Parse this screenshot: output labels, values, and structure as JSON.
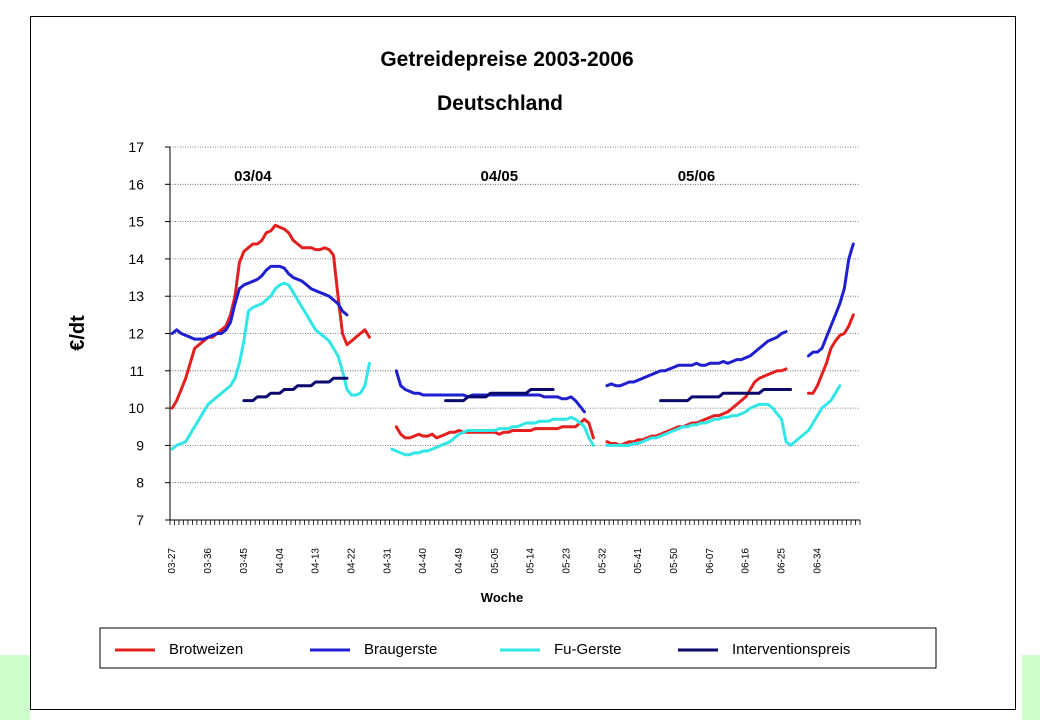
{
  "chart_data": {
    "type": "line",
    "title": "Getreidepreise 2003-2006",
    "subtitle": "Deutschland",
    "xlabel": "Woche",
    "ylabel": "€/dt",
    "ylim": [
      7,
      17
    ],
    "yticks": [
      7,
      8,
      9,
      10,
      11,
      12,
      13,
      14,
      15,
      16,
      17
    ],
    "grid": "horizontal dotted",
    "x_count": 154,
    "x_tick_labels": [
      "03-27",
      "03-36",
      "03-45",
      "04-04",
      "04-13",
      "04-22",
      "04-31",
      "04-40",
      "04-49",
      "05-05",
      "05-14",
      "05-23",
      "05-32",
      "05-41",
      "05-50",
      "06-07",
      "06-16",
      "06-25",
      "06-34"
    ],
    "season_labels": [
      {
        "text": "03/04",
        "at": 18
      },
      {
        "text": "04/05",
        "at": 73
      },
      {
        "text": "05/06",
        "at": 117
      }
    ],
    "legend_position": "bottom",
    "series": [
      {
        "name": "Brotweizen",
        "color": "#e31f1f",
        "segments": [
          {
            "start": 0,
            "values": [
              10.0,
              10.2,
              10.5,
              10.8,
              11.2,
              11.6,
              11.7,
              11.8,
              11.9,
              11.9,
              12.0,
              12.1,
              12.2,
              12.5,
              13.0,
              13.9,
              14.2,
              14.3,
              14.4,
              14.4,
              14.5,
              14.7,
              14.75,
              14.9,
              14.85,
              14.8,
              14.7,
              14.5,
              14.4,
              14.3,
              14.3,
              14.3,
              14.25,
              14.25,
              14.3,
              14.25,
              14.1,
              13.0,
              12.0,
              11.7,
              11.8,
              11.9,
              12.0,
              12.1,
              11.9
            ]
          },
          {
            "start": 50,
            "values": [
              9.5,
              9.3,
              9.2,
              9.2,
              9.25,
              9.3,
              9.25,
              9.25,
              9.3,
              9.2,
              9.25,
              9.3,
              9.35,
              9.35,
              9.4,
              9.35,
              9.35,
              9.35,
              9.35,
              9.35,
              9.35,
              9.35,
              9.35,
              9.3,
              9.35,
              9.35,
              9.4,
              9.4,
              9.4,
              9.4,
              9.4,
              9.45,
              9.45,
              9.45,
              9.45,
              9.45,
              9.45,
              9.5,
              9.5,
              9.5,
              9.5,
              9.6,
              9.7,
              9.6,
              9.2
            ]
          },
          {
            "start": 97,
            "values": [
              9.1,
              9.05,
              9.05,
              9.0,
              9.05,
              9.1,
              9.1,
              9.15,
              9.15,
              9.2,
              9.25,
              9.25,
              9.3,
              9.35,
              9.4,
              9.45,
              9.5,
              9.5,
              9.55,
              9.6,
              9.6,
              9.65,
              9.7,
              9.75,
              9.8,
              9.8,
              9.85,
              9.9,
              10.0,
              10.1,
              10.2,
              10.3,
              10.5,
              10.7,
              10.8,
              10.85,
              10.9,
              10.95,
              11.0,
              11.0,
              11.05
            ]
          },
          {
            "start": 142,
            "values": [
              10.4,
              10.4,
              10.6,
              10.9,
              11.2,
              11.6,
              11.8,
              11.95,
              12.0,
              12.2,
              12.5
            ]
          }
        ]
      },
      {
        "name": "Braugerste",
        "color": "#1f1fd0",
        "segments": [
          {
            "start": 0,
            "values": [
              12.0,
              12.1,
              12.0,
              11.95,
              11.9,
              11.85,
              11.85,
              11.85,
              11.9,
              11.95,
              12.0,
              12.0,
              12.1,
              12.3,
              12.8,
              13.2,
              13.3,
              13.35,
              13.4,
              13.45,
              13.55,
              13.7,
              13.8,
              13.8,
              13.8,
              13.75,
              13.6,
              13.5,
              13.45,
              13.4,
              13.3,
              13.2,
              13.15,
              13.1,
              13.05,
              13.0,
              12.9,
              12.8,
              12.6,
              12.5
            ]
          },
          {
            "start": 50,
            "values": [
              11.0,
              10.6,
              10.5,
              10.45,
              10.4,
              10.4,
              10.35,
              10.35,
              10.35,
              10.35,
              10.35,
              10.35,
              10.35,
              10.35,
              10.35,
              10.35,
              10.3,
              10.35,
              10.35,
              10.35,
              10.35,
              10.35,
              10.35,
              10.35,
              10.35,
              10.35,
              10.35,
              10.35,
              10.35,
              10.35,
              10.35,
              10.35,
              10.35,
              10.3,
              10.3,
              10.3,
              10.3,
              10.25,
              10.25,
              10.3,
              10.2,
              10.05,
              9.9
            ]
          },
          {
            "start": 97,
            "values": [
              10.6,
              10.65,
              10.6,
              10.6,
              10.65,
              10.7,
              10.7,
              10.75,
              10.8,
              10.85,
              10.9,
              10.95,
              11.0,
              11.0,
              11.05,
              11.1,
              11.15,
              11.15,
              11.15,
              11.15,
              11.2,
              11.15,
              11.15,
              11.2,
              11.2,
              11.2,
              11.25,
              11.2,
              11.25,
              11.3,
              11.3,
              11.35,
              11.4,
              11.5,
              11.6,
              11.7,
              11.8,
              11.85,
              11.9,
              12.0,
              12.05
            ]
          },
          {
            "start": 142,
            "values": [
              11.4,
              11.5,
              11.5,
              11.6,
              11.9,
              12.2,
              12.5,
              12.8,
              13.2,
              14.0,
              14.4
            ]
          }
        ]
      },
      {
        "name": "Fu-Gerste",
        "color": "#33e6e6",
        "segments": [
          {
            "start": 0,
            "values": [
              8.9,
              9.0,
              9.05,
              9.1,
              9.3,
              9.5,
              9.7,
              9.9,
              10.1,
              10.2,
              10.3,
              10.4,
              10.5,
              10.6,
              10.8,
              11.2,
              11.8,
              12.6,
              12.7,
              12.75,
              12.8,
              12.9,
              13.0,
              13.2,
              13.3,
              13.35,
              13.3,
              13.1,
              12.9,
              12.7,
              12.5,
              12.3,
              12.1,
              12.0,
              11.9,
              11.8,
              11.6,
              11.4,
              11.0,
              10.5,
              10.35,
              10.35,
              10.4,
              10.6,
              11.2
            ]
          },
          {
            "start": 49,
            "values": [
              8.9,
              8.85,
              8.8,
              8.75,
              8.75,
              8.8,
              8.8,
              8.85,
              8.85,
              8.9,
              8.95,
              9.0,
              9.05,
              9.1,
              9.2,
              9.3,
              9.35,
              9.4,
              9.4,
              9.4,
              9.4,
              9.4,
              9.4,
              9.4,
              9.45,
              9.45,
              9.45,
              9.5,
              9.5,
              9.55,
              9.6,
              9.6,
              9.6,
              9.65,
              9.65,
              9.65,
              9.7,
              9.7,
              9.7,
              9.7,
              9.75,
              9.7,
              9.6,
              9.5,
              9.2,
              9.0
            ]
          },
          {
            "start": 97,
            "values": [
              9.0,
              9.0,
              9.0,
              9.0,
              9.0,
              9.0,
              9.05,
              9.05,
              9.1,
              9.15,
              9.2,
              9.2,
              9.25,
              9.3,
              9.35,
              9.4,
              9.45,
              9.5,
              9.5,
              9.55,
              9.55,
              9.6,
              9.6,
              9.65,
              9.7,
              9.7,
              9.75,
              9.75,
              9.8,
              9.8,
              9.85,
              9.9,
              10.0,
              10.05,
              10.1,
              10.1,
              10.1,
              10.0,
              9.85,
              9.7,
              9.1,
              9.0,
              9.1,
              9.2,
              9.3,
              9.4,
              9.6,
              9.8,
              10.0,
              10.1,
              10.2,
              10.4,
              10.6
            ]
          }
        ]
      },
      {
        "name": "Interventionspreis",
        "color": "#0a0a6e",
        "segments": [
          {
            "start": 16,
            "values": [
              10.2,
              10.2,
              10.2,
              10.3,
              10.3,
              10.3,
              10.4,
              10.4,
              10.4,
              10.5,
              10.5,
              10.5,
              10.6,
              10.6,
              10.6,
              10.6,
              10.7,
              10.7,
              10.7,
              10.7,
              10.8,
              10.8,
              10.8,
              10.8
            ]
          },
          {
            "start": 61,
            "values": [
              10.2,
              10.2,
              10.2,
              10.2,
              10.2,
              10.3,
              10.3,
              10.3,
              10.3,
              10.3,
              10.4,
              10.4,
              10.4,
              10.4,
              10.4,
              10.4,
              10.4,
              10.4,
              10.4,
              10.5,
              10.5,
              10.5,
              10.5,
              10.5,
              10.5
            ]
          },
          {
            "start": 109,
            "values": [
              10.2,
              10.2,
              10.2,
              10.2,
              10.2,
              10.2,
              10.2,
              10.3,
              10.3,
              10.3,
              10.3,
              10.3,
              10.3,
              10.3,
              10.4,
              10.4,
              10.4,
              10.4,
              10.4,
              10.4,
              10.4,
              10.4,
              10.4,
              10.5,
              10.5,
              10.5,
              10.5,
              10.5,
              10.5,
              10.5
            ]
          }
        ]
      }
    ]
  }
}
